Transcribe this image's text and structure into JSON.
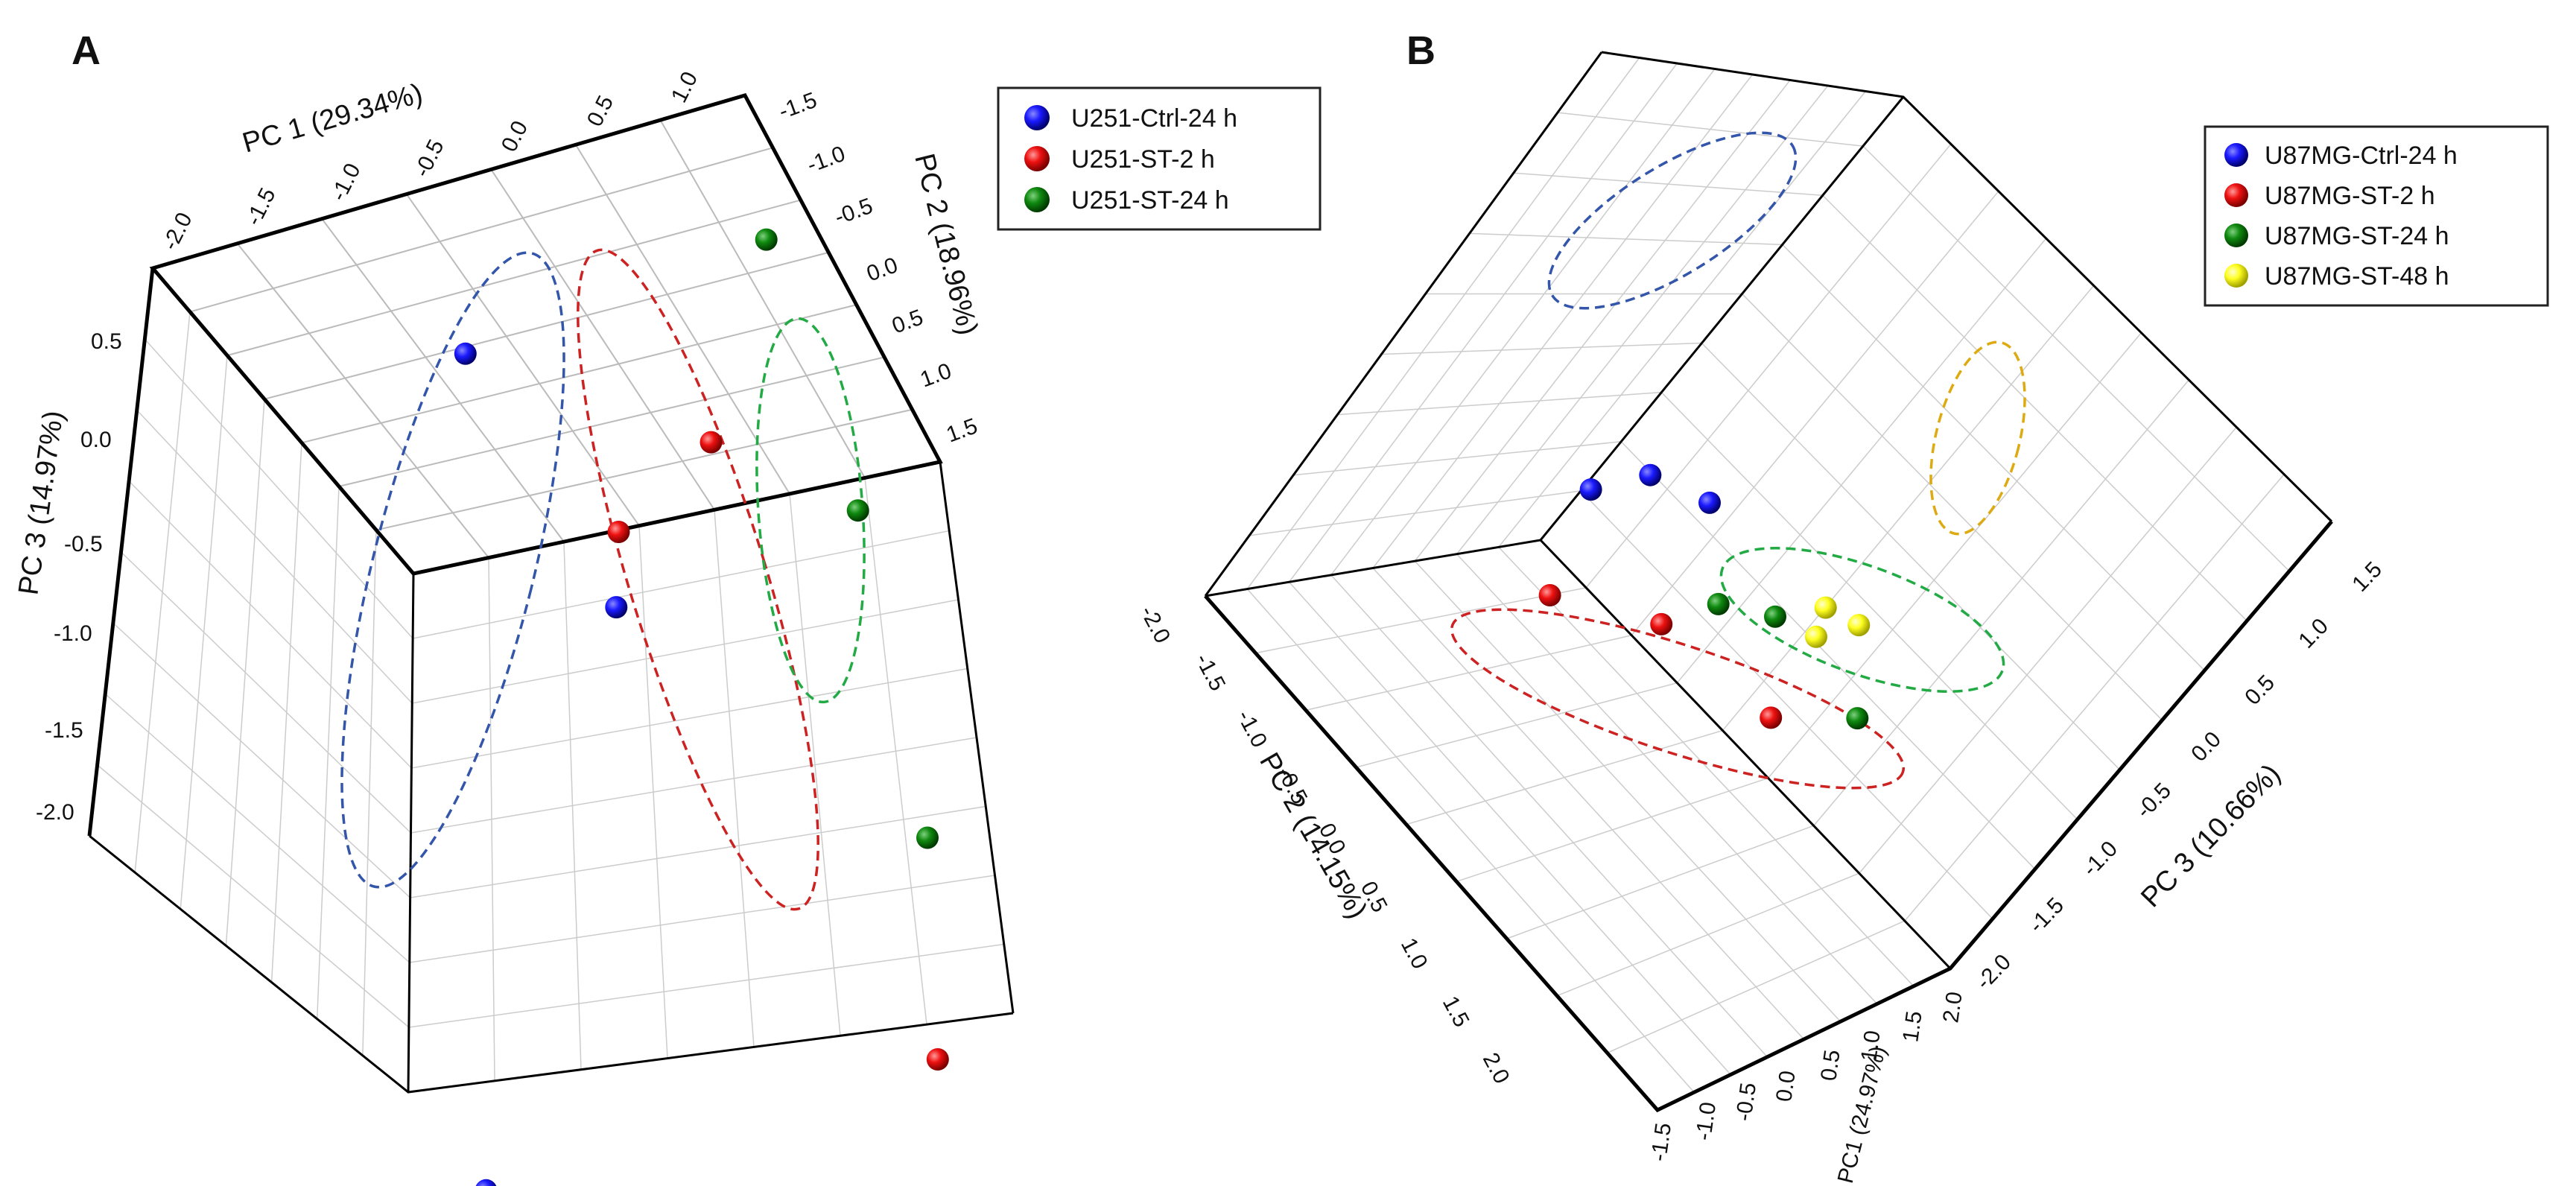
{
  "chart_data": [
    {
      "panel": "A",
      "type": "scatter",
      "xlabel": "PC 1 (29.34%)",
      "ylabel": "PC 2 (18.96%)",
      "zlabel": "PC 3 (14.97%)",
      "x_ticks": [
        "-2.0",
        "-1.5",
        "-1.0",
        "-0.5",
        "0.0",
        "0.5",
        "1.0"
      ],
      "y_ticks": [
        "-1.5",
        "-1.0",
        "-0.5",
        "0.0",
        "0.5",
        "1.0",
        "1.5"
      ],
      "z_ticks": [
        "-2.0",
        "-1.5",
        "-1.0",
        "-0.5",
        "0.0",
        "0.5"
      ],
      "legend_position": "top-right",
      "series": [
        {
          "name": "U251-Ctrl-24 h",
          "color": "#1a1aff",
          "points": [
            [
              -0.9,
              -0.4,
              0.6
            ],
            [
              -0.4,
              0.2,
              -0.3
            ],
            [
              -1.5,
              1.2,
              -2.0
            ]
          ]
        },
        {
          "name": "U251-ST-2 h",
          "color": "#ff1a1a",
          "points": [
            [
              -0.3,
              0.0,
              -0.1
            ],
            [
              0.3,
              -0.3,
              0.0
            ],
            [
              0.7,
              1.4,
              -1.9
            ]
          ]
        },
        {
          "name": "U251-ST-24 h",
          "color": "#0f8a0f",
          "points": [
            [
              0.8,
              -0.8,
              0.5
            ],
            [
              1.0,
              -0.2,
              -0.4
            ],
            [
              1.0,
              0.6,
              -1.4
            ]
          ]
        }
      ]
    },
    {
      "panel": "B",
      "type": "scatter",
      "xlabel": "PC1 (24.97%)",
      "ylabel": "PC 2 (14.15%)",
      "zlabel": "PC 3 (10.66%)",
      "x_ticks": [
        "-1.5",
        "-1.0",
        "-0.5",
        "0.0",
        "0.5",
        "1.0",
        "1.5",
        "2.0"
      ],
      "y_ticks": [
        "-2.0",
        "-1.5",
        "-1.0",
        "-0.5",
        "0.0",
        "0.5",
        "1.0",
        "1.5",
        "2.0"
      ],
      "z_ticks": [
        "-2.0",
        "-1.5",
        "-1.0",
        "-0.5",
        "0.0",
        "0.5",
        "1.0",
        "1.5"
      ],
      "legend_position": "top-right",
      "series": [
        {
          "name": "U87MG-Ctrl-24 h",
          "color": "#1a1aff",
          "points": [
            [
              -1.2,
              -1.8,
              1.2
            ],
            [
              -0.9,
              -1.2,
              1.0
            ],
            [
              -1.5,
              -1.9,
              0.7
            ]
          ]
        },
        {
          "name": "U87MG-ST-2 h",
          "color": "#ff1a1a",
          "points": [
            [
              -1.4,
              -1.4,
              -0.8
            ],
            [
              -0.7,
              -0.8,
              -0.6
            ],
            [
              0.4,
              -0.2,
              -0.9
            ]
          ]
        },
        {
          "name": "U87MG-ST-24 h",
          "color": "#0f8a0f",
          "points": [
            [
              -0.4,
              -0.8,
              0.0
            ],
            [
              0.0,
              -0.6,
              0.2
            ],
            [
              1.0,
              -0.1,
              -0.3
            ]
          ]
        },
        {
          "name": "U87MG-ST-48 h",
          "color": "#ffff1a",
          "points": [
            [
              0.7,
              -1.3,
              1.2
            ],
            [
              0.9,
              -1.0,
              1.1
            ],
            [
              0.6,
              -0.9,
              0.6
            ]
          ]
        }
      ]
    }
  ]
}
